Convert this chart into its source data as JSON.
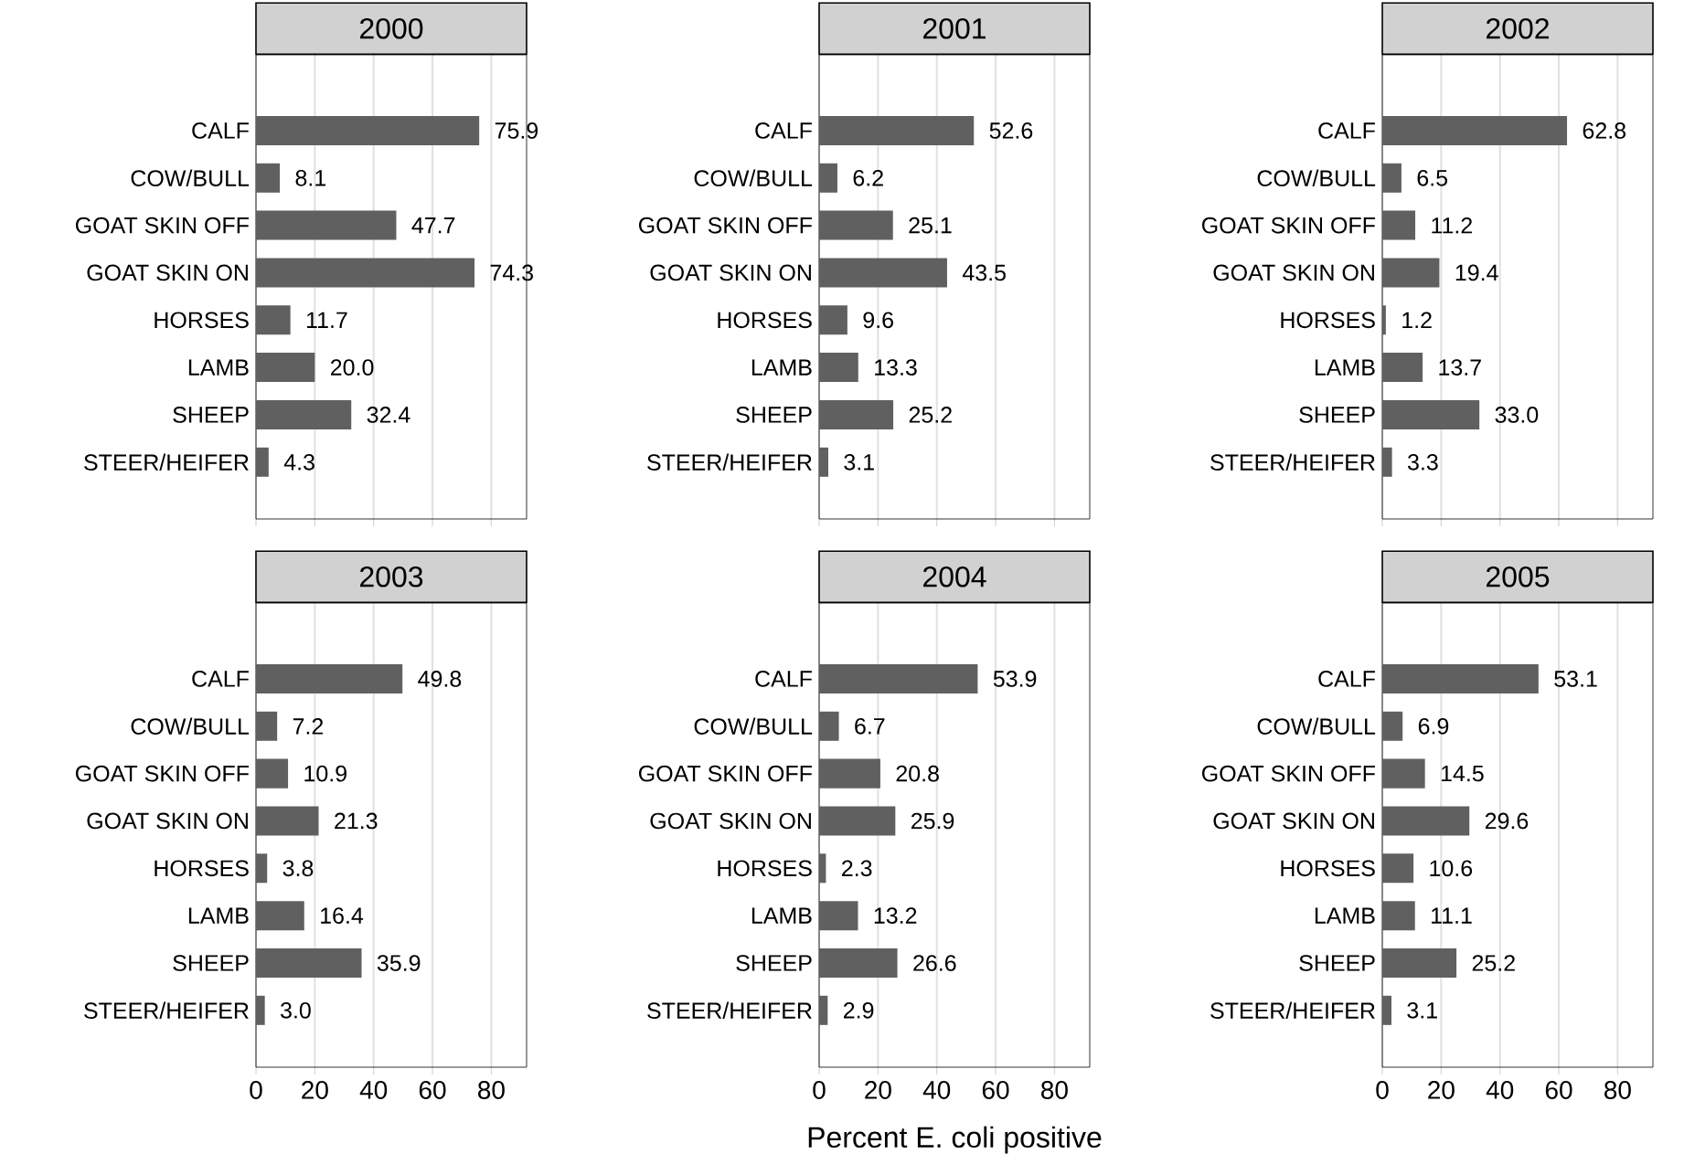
{
  "chart_data": [
    {
      "type": "bar",
      "orientation": "horizontal",
      "title": "2000",
      "categories": [
        "CALF",
        "COW/BULL",
        "GOAT SKIN OFF",
        "GOAT SKIN ON",
        "HORSES",
        "LAMB",
        "SHEEP",
        "STEER/HEIFER"
      ],
      "values": [
        75.9,
        8.1,
        47.7,
        74.3,
        11.7,
        20.0,
        32.4,
        4.3
      ],
      "value_labels": [
        "75.9",
        "8.1",
        "47.7",
        "74.3",
        "11.7",
        "20.0",
        "32.4",
        "4.3"
      ],
      "color": "#606060",
      "xlim": [
        0,
        92
      ],
      "xticks": [
        0,
        20,
        40,
        60,
        80
      ],
      "grid": "x",
      "tick_labels": "y"
    },
    {
      "type": "bar",
      "orientation": "horizontal",
      "title": "2001",
      "categories": [
        "CALF",
        "COW/BULL",
        "GOAT SKIN OFF",
        "GOAT SKIN ON",
        "HORSES",
        "LAMB",
        "SHEEP",
        "STEER/HEIFER"
      ],
      "values": [
        52.6,
        6.2,
        25.1,
        43.5,
        9.6,
        13.3,
        25.2,
        3.1
      ],
      "value_labels": [
        "52.6",
        "6.2",
        "25.1",
        "43.5",
        "9.6",
        "13.3",
        "25.2",
        "3.1"
      ],
      "color": "#606060",
      "xlim": [
        0,
        92
      ],
      "xticks": [
        0,
        20,
        40,
        60,
        80
      ],
      "grid": "x",
      "tick_labels": "y"
    },
    {
      "type": "bar",
      "orientation": "horizontal",
      "title": "2002",
      "categories": [
        "CALF",
        "COW/BULL",
        "GOAT SKIN OFF",
        "GOAT SKIN ON",
        "HORSES",
        "LAMB",
        "SHEEP",
        "STEER/HEIFER"
      ],
      "values": [
        62.8,
        6.5,
        11.2,
        19.4,
        1.2,
        13.7,
        33.0,
        3.3
      ],
      "value_labels": [
        "62.8",
        "6.5",
        "11.2",
        "19.4",
        "1.2",
        "13.7",
        "33.0",
        "3.3"
      ],
      "color": "#606060",
      "xlim": [
        0,
        92
      ],
      "xticks": [
        0,
        20,
        40,
        60,
        80
      ],
      "grid": "x",
      "tick_labels": "y"
    },
    {
      "type": "bar",
      "orientation": "horizontal",
      "title": "2003",
      "categories": [
        "CALF",
        "COW/BULL",
        "GOAT SKIN OFF",
        "GOAT SKIN ON",
        "HORSES",
        "LAMB",
        "SHEEP",
        "STEER/HEIFER"
      ],
      "values": [
        49.8,
        7.2,
        10.9,
        21.3,
        3.8,
        16.4,
        35.9,
        3.0
      ],
      "value_labels": [
        "49.8",
        "7.2",
        "10.9",
        "21.3",
        "3.8",
        "16.4",
        "35.9",
        "3.0"
      ],
      "color": "#606060",
      "xlim": [
        0,
        92
      ],
      "xticks": [
        0,
        20,
        40,
        60,
        80
      ],
      "grid": "x"
    },
    {
      "type": "bar",
      "orientation": "horizontal",
      "title": "2004",
      "xlabel": "Percent E. coli positive",
      "categories": [
        "CALF",
        "COW/BULL",
        "GOAT SKIN OFF",
        "GOAT SKIN ON",
        "HORSES",
        "LAMB",
        "SHEEP",
        "STEER/HEIFER"
      ],
      "values": [
        53.9,
        6.7,
        20.8,
        25.9,
        2.3,
        13.2,
        26.6,
        2.9
      ],
      "value_labels": [
        "53.9",
        "6.7",
        "20.8",
        "25.9",
        "2.3",
        "13.2",
        "26.6",
        "2.9"
      ],
      "color": "#606060",
      "xlim": [
        0,
        92
      ],
      "xticks": [
        0,
        20,
        40,
        60,
        80
      ],
      "grid": "x"
    },
    {
      "type": "bar",
      "orientation": "horizontal",
      "title": "2005",
      "categories": [
        "CALF",
        "COW/BULL",
        "GOAT SKIN OFF",
        "GOAT SKIN ON",
        "HORSES",
        "LAMB",
        "SHEEP",
        "STEER/HEIFER"
      ],
      "values": [
        53.1,
        6.9,
        14.5,
        29.6,
        10.6,
        11.1,
        25.2,
        3.1
      ],
      "value_labels": [
        "53.1",
        "6.9",
        "14.5",
        "29.6",
        "10.6",
        "11.1",
        "25.2",
        "3.1"
      ],
      "color": "#606060",
      "xlim": [
        0,
        92
      ],
      "xticks": [
        0,
        20,
        40,
        60,
        80
      ],
      "grid": "x"
    }
  ]
}
